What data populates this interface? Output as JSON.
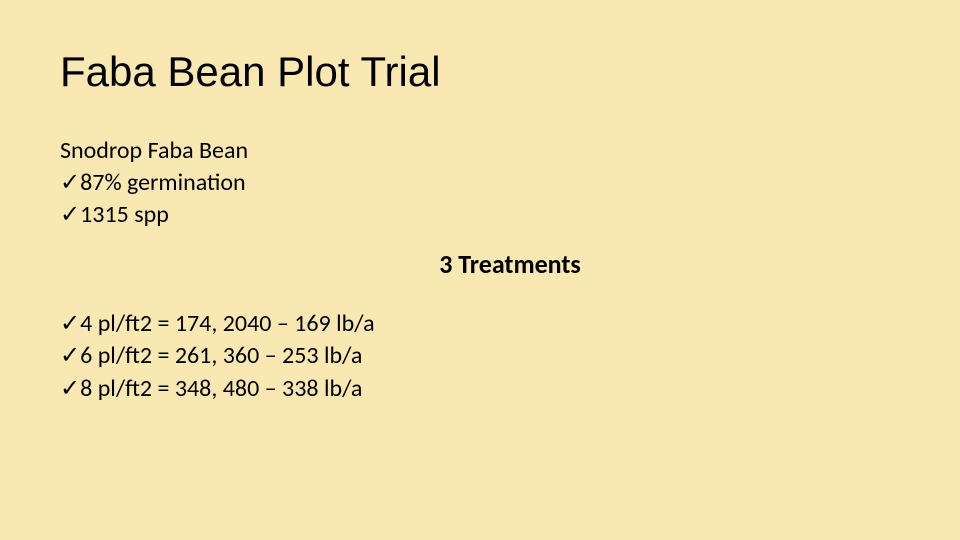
{
  "colors": {
    "background": "#f9e8b1",
    "text": "#000000"
  },
  "typography": {
    "title_font": "Comic Sans MS",
    "body_font": "Calibri",
    "title_fontsize": 42,
    "body_fontsize": 24,
    "center_heading_fontsize": 26
  },
  "title": "Faba Bean Plot Trial",
  "subheader": "Snodrop Faba Bean",
  "check_mark": "✓",
  "bullets_top": [
    "87% germination",
    "1315 spp"
  ],
  "center_heading": "3 Treatments",
  "bullets_bottom": [
    "4 pl/ft2 = 174, 2040 – 169 lb/a",
    "6 pl/ft2 = 261, 360 – 253 lb/a",
    "8 pl/ft2 = 348, 480 – 338 lb/a"
  ]
}
